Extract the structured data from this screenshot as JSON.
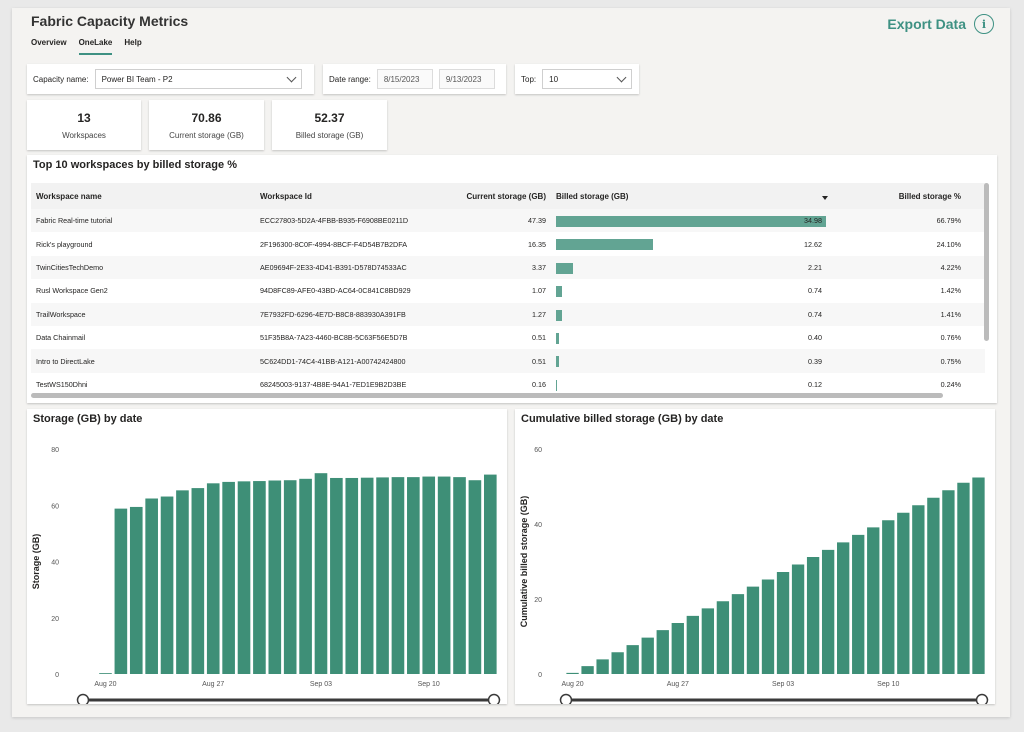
{
  "header": {
    "title": "Fabric Capacity Metrics",
    "export_label": "Export Data",
    "info_glyph": "i"
  },
  "tabs": [
    {
      "label": "Overview"
    },
    {
      "label": "OneLake",
      "active": true
    },
    {
      "label": "Help"
    }
  ],
  "filters": {
    "capacity_label": "Capacity name:",
    "capacity_value": "Power BI Team - P2",
    "date_label": "Date range:",
    "date_start": "8/15/2023",
    "date_end": "9/13/2023",
    "top_label": "Top:",
    "top_value": "10"
  },
  "cards": [
    {
      "value": "13",
      "label": "Workspaces"
    },
    {
      "value": "70.86",
      "label": "Current storage (GB)"
    },
    {
      "value": "52.37",
      "label": "Billed storage (GB)"
    }
  ],
  "table": {
    "title": "Top 10 workspaces by billed storage %",
    "columns": [
      "Workspace name",
      "Workspace Id",
      "Current storage (GB)",
      "Billed storage (GB)",
      "Billed storage %"
    ],
    "rows": [
      {
        "name": "Fabric Real-time tutorial",
        "id": "ECC27803-5D2A-4FBB-B935-F6908BE0211D",
        "current": "47.39",
        "billed": "34.98",
        "billed_num": 34.98,
        "pct": "66.79%"
      },
      {
        "name": "Rick's playground",
        "id": "2F196300-8C0F-4994-8BCF-F4D54B7B2DFA",
        "current": "16.35",
        "billed": "12.62",
        "billed_num": 12.62,
        "pct": "24.10%"
      },
      {
        "name": "TwinCitiesTechDemo",
        "id": "AE09694F-2E33-4D41-B391-D578D74533AC",
        "current": "3.37",
        "billed": "2.21",
        "billed_num": 2.21,
        "pct": "4.22%"
      },
      {
        "name": "Rusl Workspace Gen2",
        "id": "94D8FC89-AFE0-43BD-AC64-0C841C8BD929",
        "current": "1.07",
        "billed": "0.74",
        "billed_num": 0.74,
        "pct": "1.42%"
      },
      {
        "name": "TrailWorkspace",
        "id": "7E7932FD-6296-4E7D-B8C8-883930A391FB",
        "current": "1.27",
        "billed": "0.74",
        "billed_num": 0.74,
        "pct": "1.41%"
      },
      {
        "name": "Data Chainmail",
        "id": "51F35B8A-7A23-4460-BC8B-5C63F56E5D7B",
        "current": "0.51",
        "billed": "0.40",
        "billed_num": 0.4,
        "pct": "0.76%"
      },
      {
        "name": "Intro to DirectLake",
        "id": "5C624DD1-74C4-41BB-A121-A00742424800",
        "current": "0.51",
        "billed": "0.39",
        "billed_num": 0.39,
        "pct": "0.75%"
      },
      {
        "name": "TestWS150Dhni",
        "id": "68245003-9137-4B8E-94A1-7ED1E9B2D3BE",
        "current": "0.16",
        "billed": "0.12",
        "billed_num": 0.12,
        "pct": "0.24%"
      }
    ]
  },
  "colors": {
    "accent": "#3e9183",
    "bar": "#3e8f77",
    "table_bar": "#62a493"
  },
  "chart_data": [
    {
      "type": "bar",
      "title": "Storage (GB) by date",
      "ylabel": "Storage (GB)",
      "xlabel": "",
      "ylim": [
        0,
        80
      ],
      "yticks": [
        0,
        20,
        40,
        60,
        80
      ],
      "xtick_labels": [
        "Aug 20",
        "Aug 27",
        "Sep 03",
        "Sep 10"
      ],
      "xtick_indices": [
        2,
        9,
        16,
        23
      ],
      "values": [
        0,
        0,
        0.3,
        58.8,
        59.4,
        62.4,
        63.1,
        65.3,
        66.1,
        67.8,
        68.3,
        68.5,
        68.6,
        68.8,
        68.9,
        69.4,
        71.4,
        69.7,
        69.7,
        69.8,
        69.9,
        70.0,
        70.0,
        70.2,
        70.2,
        70.0,
        68.9,
        70.9
      ],
      "grid": false,
      "range_slider": true
    },
    {
      "type": "bar",
      "title": "Cumulative billed storage (GB) by date",
      "ylabel": "Cumulative billed storage (GB)",
      "xlabel": "",
      "ylim": [
        0,
        60
      ],
      "yticks": [
        0,
        20,
        40,
        60
      ],
      "xtick_labels": [
        "Aug 20",
        "Aug 27",
        "Sep 03",
        "Sep 10"
      ],
      "xtick_indices": [
        1,
        8,
        15,
        22
      ],
      "values": [
        0,
        0.3,
        2.1,
        3.9,
        5.8,
        7.7,
        9.7,
        11.7,
        13.6,
        15.5,
        17.5,
        19.4,
        21.3,
        23.3,
        25.2,
        27.2,
        29.2,
        31.2,
        33.1,
        35.1,
        37.1,
        39.1,
        41.0,
        43.0,
        45.0,
        47.0,
        49.0,
        51.0,
        52.4
      ],
      "grid": false,
      "range_slider": true
    }
  ]
}
